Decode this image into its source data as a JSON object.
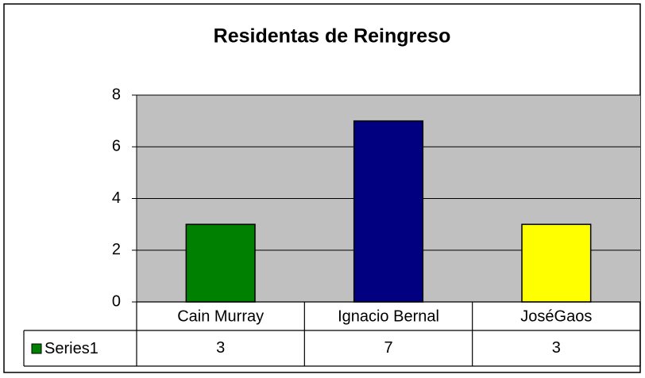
{
  "chart_data": {
    "type": "bar",
    "title": "Residentas de Reingreso",
    "categories": [
      "Cain Murray",
      "Ignacio Bernal",
      "JoséGaos"
    ],
    "series": [
      {
        "name": "Series1",
        "color": "#008000",
        "point_colors": [
          "#008000",
          "#000080",
          "#ffff00"
        ],
        "values": [
          3,
          7,
          3
        ]
      }
    ],
    "ylim": [
      0,
      8
    ],
    "yticks": [
      0,
      2,
      4,
      6,
      8
    ],
    "grid": true,
    "data_table": true
  }
}
